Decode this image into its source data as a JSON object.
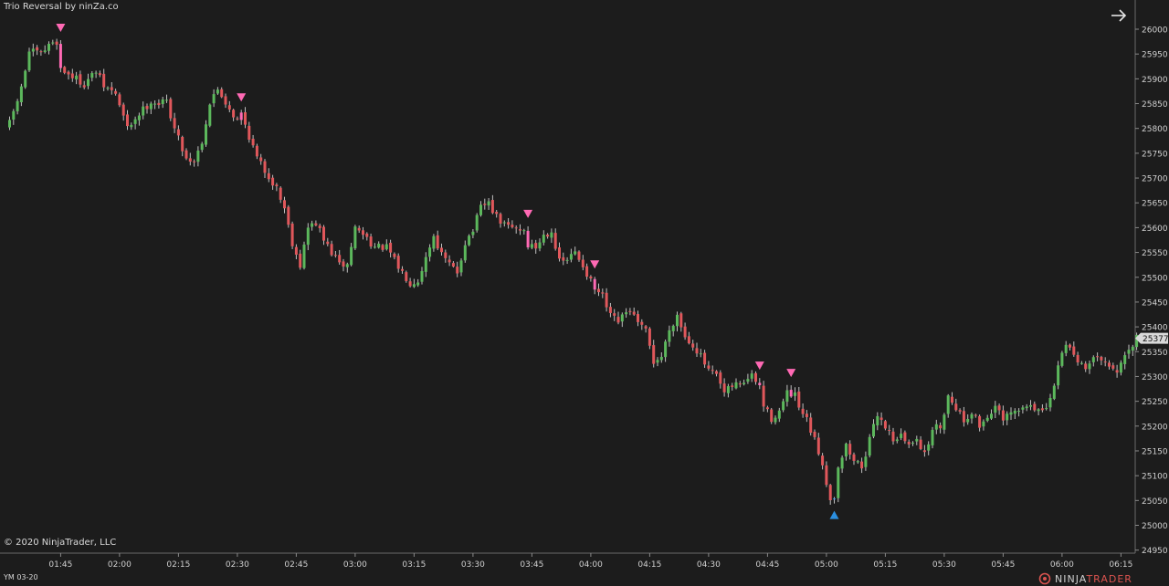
{
  "header": {
    "title": "Trio Reversal by ninZa.co"
  },
  "footer": {
    "copyright": "© 2020 NinjaTrader, LLC",
    "instrument": "YM 03-20",
    "logo_part1": "NINJA",
    "logo_part2": "TRADER"
  },
  "toolbar": {
    "nav_icon": "arrow-right-icon"
  },
  "colors": {
    "background": "#1c1c1c",
    "up_candle": "#5cb85c",
    "down_candle": "#e0575b",
    "signal_bar": "#ff69b4",
    "signal_bar_up": "#2b8fe0",
    "sell_marker": "#ff69b4",
    "buy_marker": "#2b8fe0",
    "price_tag": "#d9d9d9",
    "axis_text": "#d0d0d0"
  },
  "chart_data": {
    "type": "candlestick",
    "title": "Trio Reversal by ninZa.co",
    "xlabel": "",
    "ylabel": "",
    "ylim": [
      24950,
      26050
    ],
    "y_ticks": [
      24950,
      25000,
      25050,
      25100,
      25150,
      25200,
      25250,
      25300,
      25350,
      25400,
      25450,
      25500,
      25550,
      25600,
      25650,
      25700,
      25750,
      25800,
      25850,
      25900,
      25950,
      26000
    ],
    "x_ticks": [
      "01:45",
      "02:00",
      "02:15",
      "02:30",
      "02:45",
      "03:00",
      "03:15",
      "03:30",
      "03:45",
      "04:00",
      "04:15",
      "04:30",
      "04:45",
      "05:00",
      "05:15",
      "05:30",
      "05:45",
      "06:00",
      "06:15"
    ],
    "x_ticks_bar_index": [
      13,
      28,
      43,
      58,
      73,
      88,
      103,
      118,
      133,
      148,
      163,
      178,
      193,
      208,
      223,
      238,
      253,
      268,
      283
    ],
    "last_price": 25377,
    "grid": false,
    "price_path": [
      [
        0,
        25810
      ],
      [
        3,
        25880
      ],
      [
        5,
        25955
      ],
      [
        8,
        25950
      ],
      [
        11,
        25975
      ],
      [
        12,
        25975
      ],
      [
        13,
        25920
      ],
      [
        16,
        25905
      ],
      [
        19,
        25890
      ],
      [
        22,
        25915
      ],
      [
        24,
        25885
      ],
      [
        27,
        25870
      ],
      [
        30,
        25800
      ],
      [
        33,
        25830
      ],
      [
        36,
        25855
      ],
      [
        38,
        25850
      ],
      [
        40,
        25855
      ],
      [
        42,
        25800
      ],
      [
        45,
        25740
      ],
      [
        47,
        25735
      ],
      [
        49,
        25775
      ],
      [
        51,
        25850
      ],
      [
        53,
        25880
      ],
      [
        56,
        25840
      ],
      [
        58,
        25815
      ],
      [
        59,
        25830
      ],
      [
        61,
        25785
      ],
      [
        63,
        25740
      ],
      [
        65,
        25715
      ],
      [
        68,
        25680
      ],
      [
        70,
        25640
      ],
      [
        72,
        25570
      ],
      [
        74,
        25525
      ],
      [
        76,
        25600
      ],
      [
        78,
        25610
      ],
      [
        80,
        25575
      ],
      [
        82,
        25550
      ],
      [
        84,
        25525
      ],
      [
        86,
        25525
      ],
      [
        88,
        25600
      ],
      [
        91,
        25580
      ],
      [
        93,
        25560
      ],
      [
        96,
        25560
      ],
      [
        99,
        25520
      ],
      [
        102,
        25490
      ],
      [
        104,
        25495
      ],
      [
        106,
        25540
      ],
      [
        108,
        25585
      ],
      [
        110,
        25545
      ],
      [
        112,
        25525
      ],
      [
        114,
        25510
      ],
      [
        116,
        25570
      ],
      [
        118,
        25595
      ],
      [
        120,
        25640
      ],
      [
        122,
        25650
      ],
      [
        124,
        25620
      ],
      [
        126,
        25605
      ],
      [
        128,
        25600
      ],
      [
        131,
        25595
      ],
      [
        132,
        25565
      ],
      [
        134,
        25560
      ],
      [
        136,
        25585
      ],
      [
        138,
        25595
      ],
      [
        140,
        25530
      ],
      [
        142,
        25535
      ],
      [
        144,
        25550
      ],
      [
        146,
        25525
      ],
      [
        148,
        25490
      ],
      [
        149,
        25475
      ],
      [
        151,
        25460
      ],
      [
        153,
        25420
      ],
      [
        155,
        25410
      ],
      [
        158,
        25435
      ],
      [
        160,
        25405
      ],
      [
        162,
        25390
      ],
      [
        164,
        25330
      ],
      [
        166,
        25340
      ],
      [
        168,
        25395
      ],
      [
        170,
        25425
      ],
      [
        172,
        25380
      ],
      [
        174,
        25365
      ],
      [
        176,
        25340
      ],
      [
        178,
        25310
      ],
      [
        180,
        25300
      ],
      [
        182,
        25265
      ],
      [
        184,
        25280
      ],
      [
        187,
        25290
      ],
      [
        189,
        25300
      ],
      [
        191,
        25280
      ],
      [
        192,
        25240
      ],
      [
        194,
        25215
      ],
      [
        196,
        25230
      ],
      [
        198,
        25265
      ],
      [
        200,
        25260
      ],
      [
        201,
        25235
      ],
      [
        203,
        25210
      ],
      [
        205,
        25170
      ],
      [
        207,
        25125
      ],
      [
        209,
        25050
      ],
      [
        210,
        25060
      ],
      [
        211,
        25120
      ],
      [
        213,
        25160
      ],
      [
        215,
        25130
      ],
      [
        217,
        25120
      ],
      [
        219,
        25170
      ],
      [
        221,
        25225
      ],
      [
        223,
        25200
      ],
      [
        225,
        25175
      ],
      [
        227,
        25180
      ],
      [
        229,
        25160
      ],
      [
        231,
        25180
      ],
      [
        233,
        25140
      ],
      [
        235,
        25195
      ],
      [
        237,
        25200
      ],
      [
        239,
        25260
      ],
      [
        241,
        25240
      ],
      [
        243,
        25210
      ],
      [
        245,
        25230
      ],
      [
        247,
        25200
      ],
      [
        249,
        25220
      ],
      [
        251,
        25240
      ],
      [
        253,
        25210
      ],
      [
        255,
        25225
      ],
      [
        257,
        25230
      ],
      [
        260,
        25245
      ],
      [
        263,
        25225
      ],
      [
        265,
        25250
      ],
      [
        267,
        25320
      ],
      [
        269,
        25370
      ],
      [
        271,
        25345
      ],
      [
        273,
        25325
      ],
      [
        275,
        25320
      ],
      [
        277,
        25345
      ],
      [
        279,
        25335
      ],
      [
        281,
        25310
      ],
      [
        283,
        25320
      ],
      [
        285,
        25350
      ],
      [
        287,
        25377
      ]
    ],
    "signals": [
      {
        "type": "sell",
        "bar": 13
      },
      {
        "type": "sell",
        "bar": 59
      },
      {
        "type": "sell",
        "bar": 132
      },
      {
        "type": "sell",
        "bar": 149
      },
      {
        "type": "sell",
        "bar": 191
      },
      {
        "type": "sell",
        "bar": 199
      },
      {
        "type": "buy",
        "bar": 210
      }
    ]
  }
}
